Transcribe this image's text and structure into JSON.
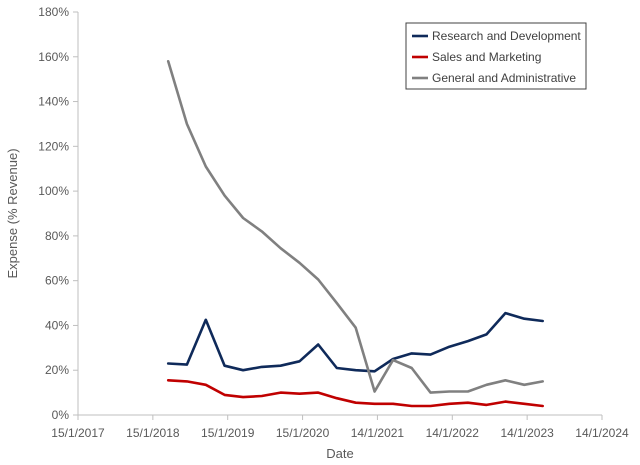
{
  "chart_data": {
    "type": "line",
    "title": "",
    "xlabel": "Date",
    "ylabel": "Expense (% Revenue)",
    "xlim": [
      "2017-01-15",
      "2024-01-14"
    ],
    "ylim": [
      0,
      180
    ],
    "x_ticks": [
      "2017-01-15",
      "2018-01-15",
      "2019-01-15",
      "2020-01-15",
      "2021-01-14",
      "2022-01-14",
      "2023-01-14",
      "2024-01-14"
    ],
    "x_tick_labels": [
      "15/1/2017",
      "15/1/2018",
      "15/1/2019",
      "15/1/2020",
      "14/1/2021",
      "14/1/2022",
      "14/1/2023",
      "14/1/2024"
    ],
    "y_ticks": [
      0,
      20,
      40,
      60,
      80,
      100,
      120,
      140,
      160,
      180
    ],
    "y_tick_labels": [
      "0%",
      "20%",
      "40%",
      "60%",
      "80%",
      "100%",
      "120%",
      "140%",
      "160%",
      "180%"
    ],
    "grid": false,
    "legend_position": "top-right",
    "series": [
      {
        "name": "Research and Development",
        "color": "#0f2a5a",
        "points": [
          [
            "2018-03-31",
            23
          ],
          [
            "2018-06-30",
            22.5
          ],
          [
            "2018-09-30",
            42.5
          ],
          [
            "2018-12-31",
            22
          ],
          [
            "2019-03-31",
            20
          ],
          [
            "2019-06-30",
            21.5
          ],
          [
            "2019-09-30",
            22
          ],
          [
            "2019-12-31",
            24
          ],
          [
            "2020-03-31",
            31.5
          ],
          [
            "2020-06-30",
            21
          ],
          [
            "2020-09-30",
            20
          ],
          [
            "2020-12-31",
            19.5
          ],
          [
            "2021-03-31",
            25
          ],
          [
            "2021-06-30",
            27.5
          ],
          [
            "2021-09-30",
            27
          ],
          [
            "2021-12-31",
            30.5
          ],
          [
            "2022-03-31",
            33
          ],
          [
            "2022-06-30",
            36
          ],
          [
            "2022-09-30",
            45.5
          ],
          [
            "2022-12-31",
            43
          ],
          [
            "2023-03-31",
            42
          ]
        ]
      },
      {
        "name": "Sales and Marketing",
        "color": "#c00000",
        "points": [
          [
            "2018-03-31",
            15.5
          ],
          [
            "2018-06-30",
            15
          ],
          [
            "2018-09-30",
            13.5
          ],
          [
            "2018-12-31",
            9
          ],
          [
            "2019-03-31",
            8
          ],
          [
            "2019-06-30",
            8.5
          ],
          [
            "2019-09-30",
            10
          ],
          [
            "2019-12-31",
            9.5
          ],
          [
            "2020-03-31",
            10
          ],
          [
            "2020-06-30",
            7.5
          ],
          [
            "2020-09-30",
            5.5
          ],
          [
            "2020-12-31",
            5
          ],
          [
            "2021-03-31",
            5
          ],
          [
            "2021-06-30",
            4
          ],
          [
            "2021-09-30",
            4
          ],
          [
            "2021-12-31",
            5
          ],
          [
            "2022-03-31",
            5.5
          ],
          [
            "2022-06-30",
            4.5
          ],
          [
            "2022-09-30",
            6
          ],
          [
            "2022-12-31",
            5
          ],
          [
            "2023-03-31",
            4
          ]
        ]
      },
      {
        "name": "General and Administrative",
        "color": "#808080",
        "points": [
          [
            "2018-03-31",
            158
          ],
          [
            "2018-06-30",
            130
          ],
          [
            "2018-09-30",
            111
          ],
          [
            "2018-12-31",
            98
          ],
          [
            "2019-03-31",
            88
          ],
          [
            "2019-06-30",
            82
          ],
          [
            "2019-09-30",
            74.5
          ],
          [
            "2019-12-31",
            68
          ],
          [
            "2020-03-31",
            60.5
          ],
          [
            "2020-06-30",
            50
          ],
          [
            "2020-09-30",
            39
          ],
          [
            "2020-12-31",
            10.5
          ],
          [
            "2021-03-31",
            24.5
          ],
          [
            "2021-06-30",
            21
          ],
          [
            "2021-09-30",
            10
          ],
          [
            "2021-12-31",
            10.5
          ],
          [
            "2022-03-31",
            10.5
          ],
          [
            "2022-06-30",
            13.5
          ],
          [
            "2022-09-30",
            15.5
          ],
          [
            "2022-12-31",
            13.5
          ],
          [
            "2023-03-31",
            15
          ]
        ]
      }
    ]
  }
}
